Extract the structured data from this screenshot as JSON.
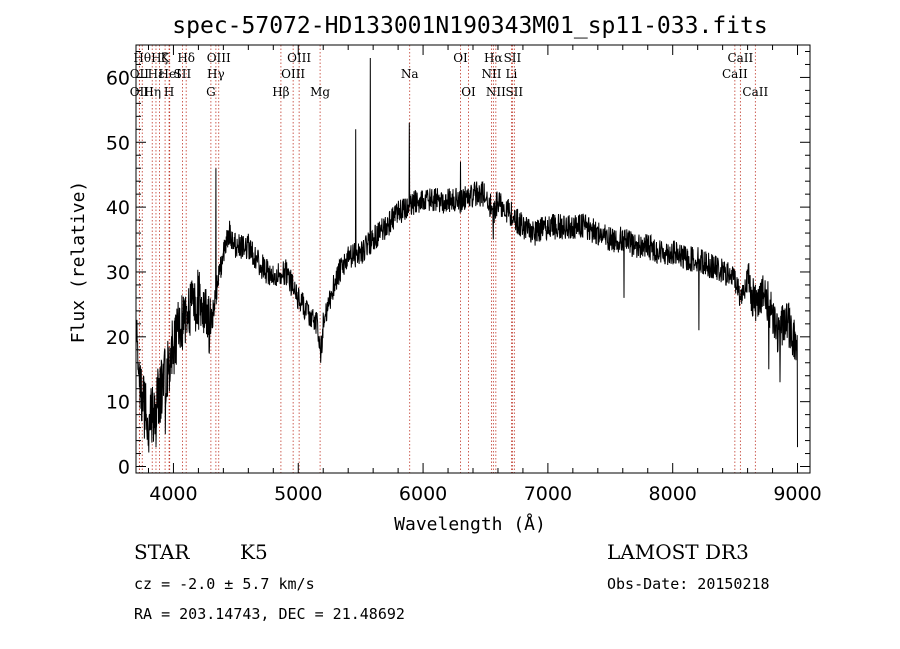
{
  "chart_data": {
    "type": "line",
    "title": "spec-57072-HD133001N190343M01_sp11-033.fits",
    "xlabel": "Wavelength (Å)",
    "ylabel": "Flux (relative)",
    "xlim": [
      3700,
      9100
    ],
    "ylim": [
      -1,
      65
    ],
    "x_ticks": [
      4000,
      5000,
      6000,
      7000,
      8000,
      9000
    ],
    "y_ticks": [
      0,
      10,
      20,
      30,
      40,
      50,
      60
    ],
    "spectrum_envelope": {
      "x": [
        3700,
        3750,
        3800,
        3850,
        3900,
        3950,
        4000,
        4050,
        4100,
        4150,
        4200,
        4250,
        4300,
        4330,
        4360,
        4400,
        4450,
        4500,
        4600,
        4700,
        4800,
        4900,
        5000,
        5100,
        5150,
        5180,
        5200,
        5300,
        5400,
        5500,
        5600,
        5700,
        5800,
        5890,
        5950,
        6000,
        6100,
        6200,
        6300,
        6400,
        6500,
        6563,
        6600,
        6700,
        6800,
        6900,
        7000,
        7100,
        7200,
        7300,
        7400,
        7500,
        7600,
        7700,
        7800,
        7900,
        8000,
        8100,
        8200,
        8300,
        8400,
        8500,
        8542,
        8600,
        8662,
        8700,
        8800,
        8850,
        8900,
        8950,
        9000
      ],
      "y": [
        20,
        10,
        7,
        9,
        12,
        15,
        19,
        21,
        23,
        24,
        26,
        23,
        22,
        25,
        29,
        33,
        36,
        34,
        34,
        31,
        29,
        30,
        26,
        23,
        22,
        17,
        22,
        29,
        32,
        33,
        35,
        37,
        39,
        40,
        41,
        41,
        41,
        41,
        41,
        42,
        42,
        39,
        41,
        39,
        37,
        36,
        37,
        37,
        37,
        37,
        36,
        35,
        35,
        34,
        34,
        33,
        33,
        32,
        32,
        31,
        30,
        29,
        26,
        29,
        25,
        27,
        24,
        20,
        23,
        21,
        18
      ]
    },
    "spikes": [
      {
        "x": 4340,
        "y": 46
      },
      {
        "x": 5460,
        "y": 52
      },
      {
        "x": 5577,
        "y": 63
      },
      {
        "x": 5890,
        "y": 53
      },
      {
        "x": 6300,
        "y": 47
      }
    ],
    "dips": [
      {
        "x": 3860,
        "y": 3
      },
      {
        "x": 3935,
        "y": 5
      },
      {
        "x": 5180,
        "y": 16
      },
      {
        "x": 6563,
        "y": 35
      },
      {
        "x": 7610,
        "y": 26
      },
      {
        "x": 8210,
        "y": 21
      },
      {
        "x": 8770,
        "y": 15
      },
      {
        "x": 8860,
        "y": 13
      },
      {
        "x": 9000,
        "y": 3
      }
    ],
    "spectral_lines": [
      {
        "x": 3750,
        "row": 1,
        "label": "Hθ"
      },
      {
        "x": 3727,
        "row": 2,
        "label": "OII"
      },
      {
        "x": 3727,
        "row": 3,
        "label": "OII"
      },
      {
        "x": 3830,
        "row": 3,
        "label": "Hη"
      },
      {
        "x": 3860,
        "row": 2,
        "label": "Hε"
      },
      {
        "x": 3889,
        "row": 1,
        "label": "Hζ"
      },
      {
        "x": 3933,
        "row": 1,
        "label": "K"
      },
      {
        "x": 3965,
        "row": 3,
        "label": "H"
      },
      {
        "x": 3970,
        "row": 2,
        "label": "HeI"
      },
      {
        "x": 4072,
        "row": 2,
        "label": "SII"
      },
      {
        "x": 4102,
        "row": 1,
        "label": "Hδ"
      },
      {
        "x": 4300,
        "row": 3,
        "label": "G"
      },
      {
        "x": 4340,
        "row": 2,
        "label": "Hγ"
      },
      {
        "x": 4363,
        "row": 1,
        "label": "OIII"
      },
      {
        "x": 4861,
        "row": 3,
        "label": "Hβ"
      },
      {
        "x": 4959,
        "row": 2,
        "label": "OIII"
      },
      {
        "x": 5007,
        "row": 1,
        "label": "OIII"
      },
      {
        "x": 5175,
        "row": 3,
        "label": "Mg"
      },
      {
        "x": 5893,
        "row": 2,
        "label": "Na"
      },
      {
        "x": 6300,
        "row": 1,
        "label": "OI"
      },
      {
        "x": 6364,
        "row": 3,
        "label": "OI"
      },
      {
        "x": 6548,
        "row": 2,
        "label": "NII"
      },
      {
        "x": 6563,
        "row": 1,
        "label": "Hα"
      },
      {
        "x": 6583,
        "row": 3,
        "label": "NII"
      },
      {
        "x": 6708,
        "row": 2,
        "label": "Li"
      },
      {
        "x": 6716,
        "row": 1,
        "label": "SII"
      },
      {
        "x": 6731,
        "row": 3,
        "label": "SII"
      },
      {
        "x": 8498,
        "row": 2,
        "label": "CaII"
      },
      {
        "x": 8542,
        "row": 1,
        "label": "CaII"
      },
      {
        "x": 8662,
        "row": 3,
        "label": "CaII"
      }
    ],
    "marker_color": "#c0392b",
    "series_color": "#000000"
  },
  "info": {
    "object_class": "STAR",
    "subclass": "K5",
    "survey": "LAMOST DR3",
    "redshift_line": "cz = -2.0 ± 5.7 km/s",
    "obs_date": "Obs-Date: 20150218",
    "coords": "RA = 203.14743, DEC =  21.48692"
  }
}
